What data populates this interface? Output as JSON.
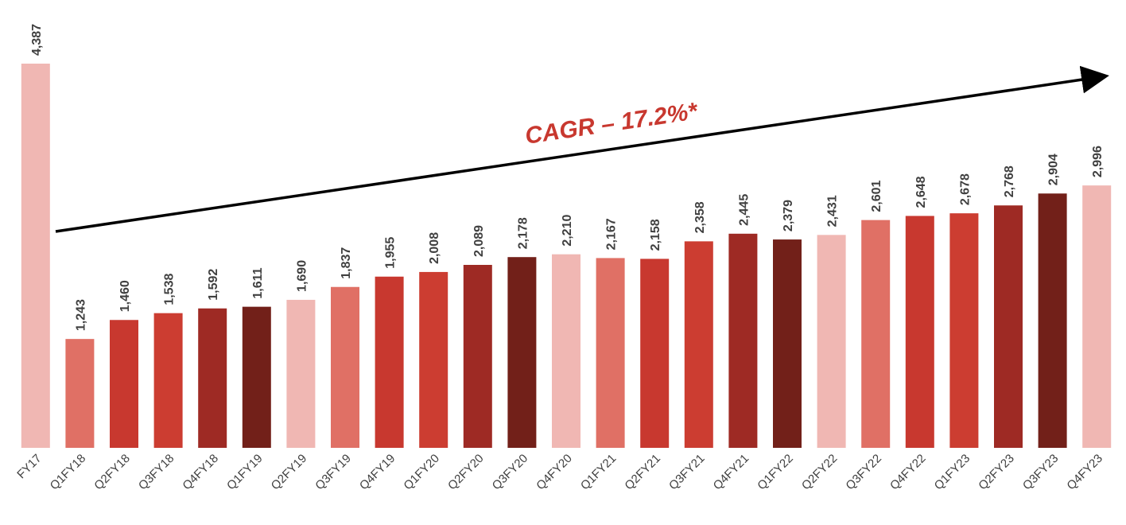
{
  "chart_data": {
    "type": "bar",
    "annotation": "CAGR – 17.2%*",
    "categories": [
      "FY17",
      "Q1FY18",
      "Q2FY18",
      "Q3FY18",
      "Q4FY18",
      "Q1FY19",
      "Q2FY19",
      "Q3FY19",
      "Q4FY19",
      "Q1FY20",
      "Q2FY20",
      "Q3FY20",
      "Q4FY20",
      "Q1FY21",
      "Q2FY21",
      "Q3FY21",
      "Q4FY21",
      "Q1FY22",
      "Q2FY22",
      "Q3FY22",
      "Q4FY22",
      "Q1FY23",
      "Q2FY23",
      "Q3FY23",
      "Q4FY23"
    ],
    "values": [
      4387,
      1243,
      1460,
      1538,
      1592,
      1611,
      1690,
      1837,
      1955,
      2008,
      2089,
      2178,
      2210,
      2167,
      2158,
      2358,
      2445,
      2379,
      2431,
      2601,
      2648,
      2678,
      2768,
      2904,
      2996
    ],
    "value_labels": [
      "4,387",
      "1,243",
      "1,460",
      "1,538",
      "1,592",
      "1,611",
      "1,690",
      "1,837",
      "1,955",
      "2,008",
      "2,089",
      "2,178",
      "2,210",
      "2,167",
      "2,158",
      "2,358",
      "2,445",
      "2,379",
      "2,431",
      "2,601",
      "2,648",
      "2,678",
      "2,768",
      "2,904",
      "2,996"
    ],
    "colors": [
      "#f0b7b3",
      "#e07065",
      "#c8382f",
      "#cc3d31",
      "#9e2a24",
      "#722019",
      "#f0b7b3",
      "#e07065",
      "#c8382f",
      "#cc3d31",
      "#9e2a24",
      "#722019",
      "#f0b7b3",
      "#e07065",
      "#c8382f",
      "#cc3d31",
      "#9e2a24",
      "#722019",
      "#f0b7b3",
      "#e07065",
      "#c8382f",
      "#cc3d31",
      "#9e2a24",
      "#722019",
      "#f0b7b3"
    ],
    "ylim": [
      0,
      5000
    ]
  }
}
